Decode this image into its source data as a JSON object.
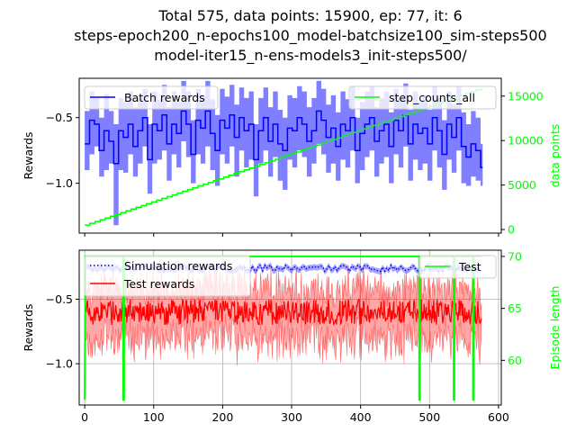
{
  "figure": {
    "title_lines": [
      "Total 575, data points: 15900, ep: 77, it: 6",
      "steps-epoch200_n-epochs100_model-batchsize100_sim-steps500",
      "model-iter15_n-ens-models3_init-steps500/"
    ]
  },
  "colors": {
    "batch": "#0000ff",
    "steps": "#00ff00",
    "sim": "#0000ff",
    "test_rewards": "#ff0000",
    "test": "#00ff00",
    "grid": "#b0b0b0"
  },
  "chart_data": [
    {
      "type": "line",
      "ylabel": "Rewards",
      "ylabel_right": "data points",
      "xlim": [
        -8,
        604
      ],
      "ylim": [
        -1.38,
        -0.2
      ],
      "ylim_right": [
        -400,
        17000
      ],
      "yticks": [
        -1.0,
        -0.5
      ],
      "ytick_labels": [
        "−1.0",
        "−0.5"
      ],
      "yticks_right": [
        0,
        5000,
        10000,
        15000
      ],
      "ytick_labels_right": [
        "0",
        "5000",
        "10000",
        "15000"
      ],
      "x_tick_labels_shown": false,
      "grid": false,
      "legend_left": {
        "position": "upper left",
        "entries": [
          "Batch rewards"
        ]
      },
      "legend_right": {
        "position": "upper right",
        "entries": [
          "step_counts_all"
        ]
      },
      "batch_rewards": {
        "x": [
          0,
          7,
          14,
          21,
          28,
          35,
          42,
          49,
          56,
          63,
          70,
          77,
          84,
          91,
          98,
          105,
          112,
          119,
          126,
          133,
          140,
          147,
          154,
          161,
          168,
          175,
          182,
          189,
          196,
          203,
          210,
          217,
          224,
          231,
          238,
          245,
          252,
          259,
          266,
          273,
          280,
          287,
          294,
          301,
          308,
          315,
          322,
          329,
          336,
          343,
          350,
          357,
          364,
          371,
          378,
          385,
          392,
          399,
          406,
          413,
          420,
          427,
          434,
          441,
          448,
          455,
          462,
          469,
          476,
          483,
          490,
          497,
          504,
          511,
          518,
          525,
          532,
          539,
          546,
          553,
          560,
          567,
          574
        ],
        "mean": [
          -0.7,
          -0.52,
          -0.55,
          -0.75,
          -0.6,
          -0.68,
          -0.85,
          -0.6,
          -0.65,
          -0.55,
          -0.72,
          -0.6,
          -0.5,
          -0.82,
          -0.55,
          -0.6,
          -0.48,
          -0.7,
          -0.55,
          -0.62,
          -0.45,
          -0.55,
          -0.78,
          -0.52,
          -0.58,
          -0.45,
          -0.62,
          -0.75,
          -0.52,
          -0.58,
          -0.48,
          -0.65,
          -0.5,
          -0.6,
          -0.55,
          -0.82,
          -0.6,
          -0.5,
          -0.68,
          -0.55,
          -0.7,
          -0.75,
          -0.58,
          -0.6,
          -0.5,
          -0.55,
          -0.68,
          -0.6,
          -0.45,
          -0.52,
          -0.65,
          -0.58,
          -0.72,
          -0.55,
          -0.6,
          -0.5,
          -0.75,
          -0.62,
          -0.55,
          -0.5,
          -0.68,
          -0.6,
          -0.55,
          -0.72,
          -0.52,
          -0.6,
          -0.48,
          -0.7,
          -0.55,
          -0.62,
          -0.58,
          -0.7,
          -0.5,
          -0.6,
          -0.78,
          -0.55,
          -0.65,
          -0.5,
          -0.72,
          -0.8,
          -0.7,
          -0.75,
          -0.88
        ],
        "low": [
          -0.9,
          -0.78,
          -0.72,
          -0.95,
          -0.9,
          -0.85,
          -1.32,
          -0.9,
          -0.92,
          -0.78,
          -0.95,
          -0.85,
          -0.72,
          -1.08,
          -0.85,
          -0.82,
          -0.75,
          -0.98,
          -0.78,
          -0.88,
          -0.68,
          -0.8,
          -1.0,
          -0.78,
          -0.85,
          -0.72,
          -0.9,
          -1.02,
          -0.78,
          -0.85,
          -0.72,
          -0.95,
          -0.75,
          -0.88,
          -0.82,
          -1.1,
          -0.85,
          -0.75,
          -0.95,
          -0.8,
          -0.98,
          -1.05,
          -0.82,
          -0.88,
          -0.75,
          -0.8,
          -0.95,
          -0.85,
          -0.7,
          -0.78,
          -0.92,
          -0.85,
          -0.98,
          -0.82,
          -0.88,
          -0.75,
          -1.0,
          -0.9,
          -0.8,
          -0.75,
          -0.95,
          -0.85,
          -0.8,
          -1.0,
          -0.78,
          -0.88,
          -0.72,
          -0.98,
          -0.82,
          -0.9,
          -0.85,
          -0.98,
          -0.75,
          -0.88,
          -1.05,
          -0.82,
          -0.92,
          -0.75,
          -1.0,
          -1.02,
          -0.95,
          -0.98,
          -1.02
        ],
        "high": [
          -0.45,
          -0.3,
          -0.35,
          -0.5,
          -0.32,
          -0.45,
          -0.55,
          -0.35,
          -0.38,
          -0.3,
          -0.42,
          -0.35,
          -0.28,
          -0.55,
          -0.3,
          -0.36,
          -0.25,
          -0.42,
          -0.3,
          -0.38,
          -0.22,
          -0.3,
          -0.52,
          -0.28,
          -0.34,
          -0.22,
          -0.36,
          -0.48,
          -0.28,
          -0.34,
          -0.25,
          -0.4,
          -0.27,
          -0.35,
          -0.3,
          -0.55,
          -0.35,
          -0.27,
          -0.42,
          -0.3,
          -0.44,
          -0.5,
          -0.33,
          -0.35,
          -0.26,
          -0.3,
          -0.42,
          -0.35,
          -0.22,
          -0.28,
          -0.4,
          -0.33,
          -0.46,
          -0.3,
          -0.36,
          -0.26,
          -0.5,
          -0.38,
          -0.3,
          -0.26,
          -0.42,
          -0.35,
          -0.3,
          -0.46,
          -0.28,
          -0.35,
          -0.24,
          -0.44,
          -0.3,
          -0.38,
          -0.33,
          -0.44,
          -0.26,
          -0.35,
          -0.52,
          -0.3,
          -0.4,
          -0.26,
          -0.46,
          -0.55,
          -0.45,
          -0.5,
          -0.7
        ]
      },
      "step_counts_all": {
        "x": [
          0,
          575
        ],
        "y": [
          500,
          15900
        ],
        "steps": 77
      }
    },
    {
      "type": "line",
      "ylabel": "Rewards",
      "ylabel_right": "Episode length",
      "xlim": [
        -8,
        604
      ],
      "ylim": [
        -1.32,
        -0.12
      ],
      "ylim_right": [
        55.7,
        70.6
      ],
      "xticks": [
        0,
        100,
        200,
        300,
        400,
        500,
        600
      ],
      "xtick_labels": [
        "0",
        "100",
        "200",
        "300",
        "400",
        "500",
        "600"
      ],
      "yticks": [
        -1.0,
        -0.5
      ],
      "ytick_labels": [
        "−1.0",
        "−0.5"
      ],
      "yticks_right": [
        60,
        65,
        70
      ],
      "ytick_labels_right": [
        "60",
        "65",
        "70"
      ],
      "grid": true,
      "legend_left": {
        "position": "upper left",
        "entries": [
          "Simulation rewards",
          "Test rewards"
        ]
      },
      "legend_right": {
        "position": "upper right",
        "entries": [
          "Test"
        ]
      },
      "simulation_rewards": {
        "x_range": [
          0,
          575
        ],
        "level": -0.26,
        "noise": 0.03
      },
      "test_rewards": {
        "x_range": [
          0,
          575
        ],
        "mean": -0.6,
        "spread": 0.22
      },
      "test_episode_length": {
        "x": [
          0,
          1,
          1,
          56,
          56,
          57,
          57,
          485,
          485,
          486,
          486,
          535,
          535,
          536,
          536,
          563,
          563,
          564,
          564,
          575
        ],
        "y": [
          56.2,
          70,
          70,
          70,
          56.2,
          56.2,
          70,
          70,
          56.2,
          56.2,
          70,
          70,
          56.2,
          56.2,
          70,
          70,
          56.2,
          56.2,
          70,
          70
        ]
      }
    }
  ]
}
